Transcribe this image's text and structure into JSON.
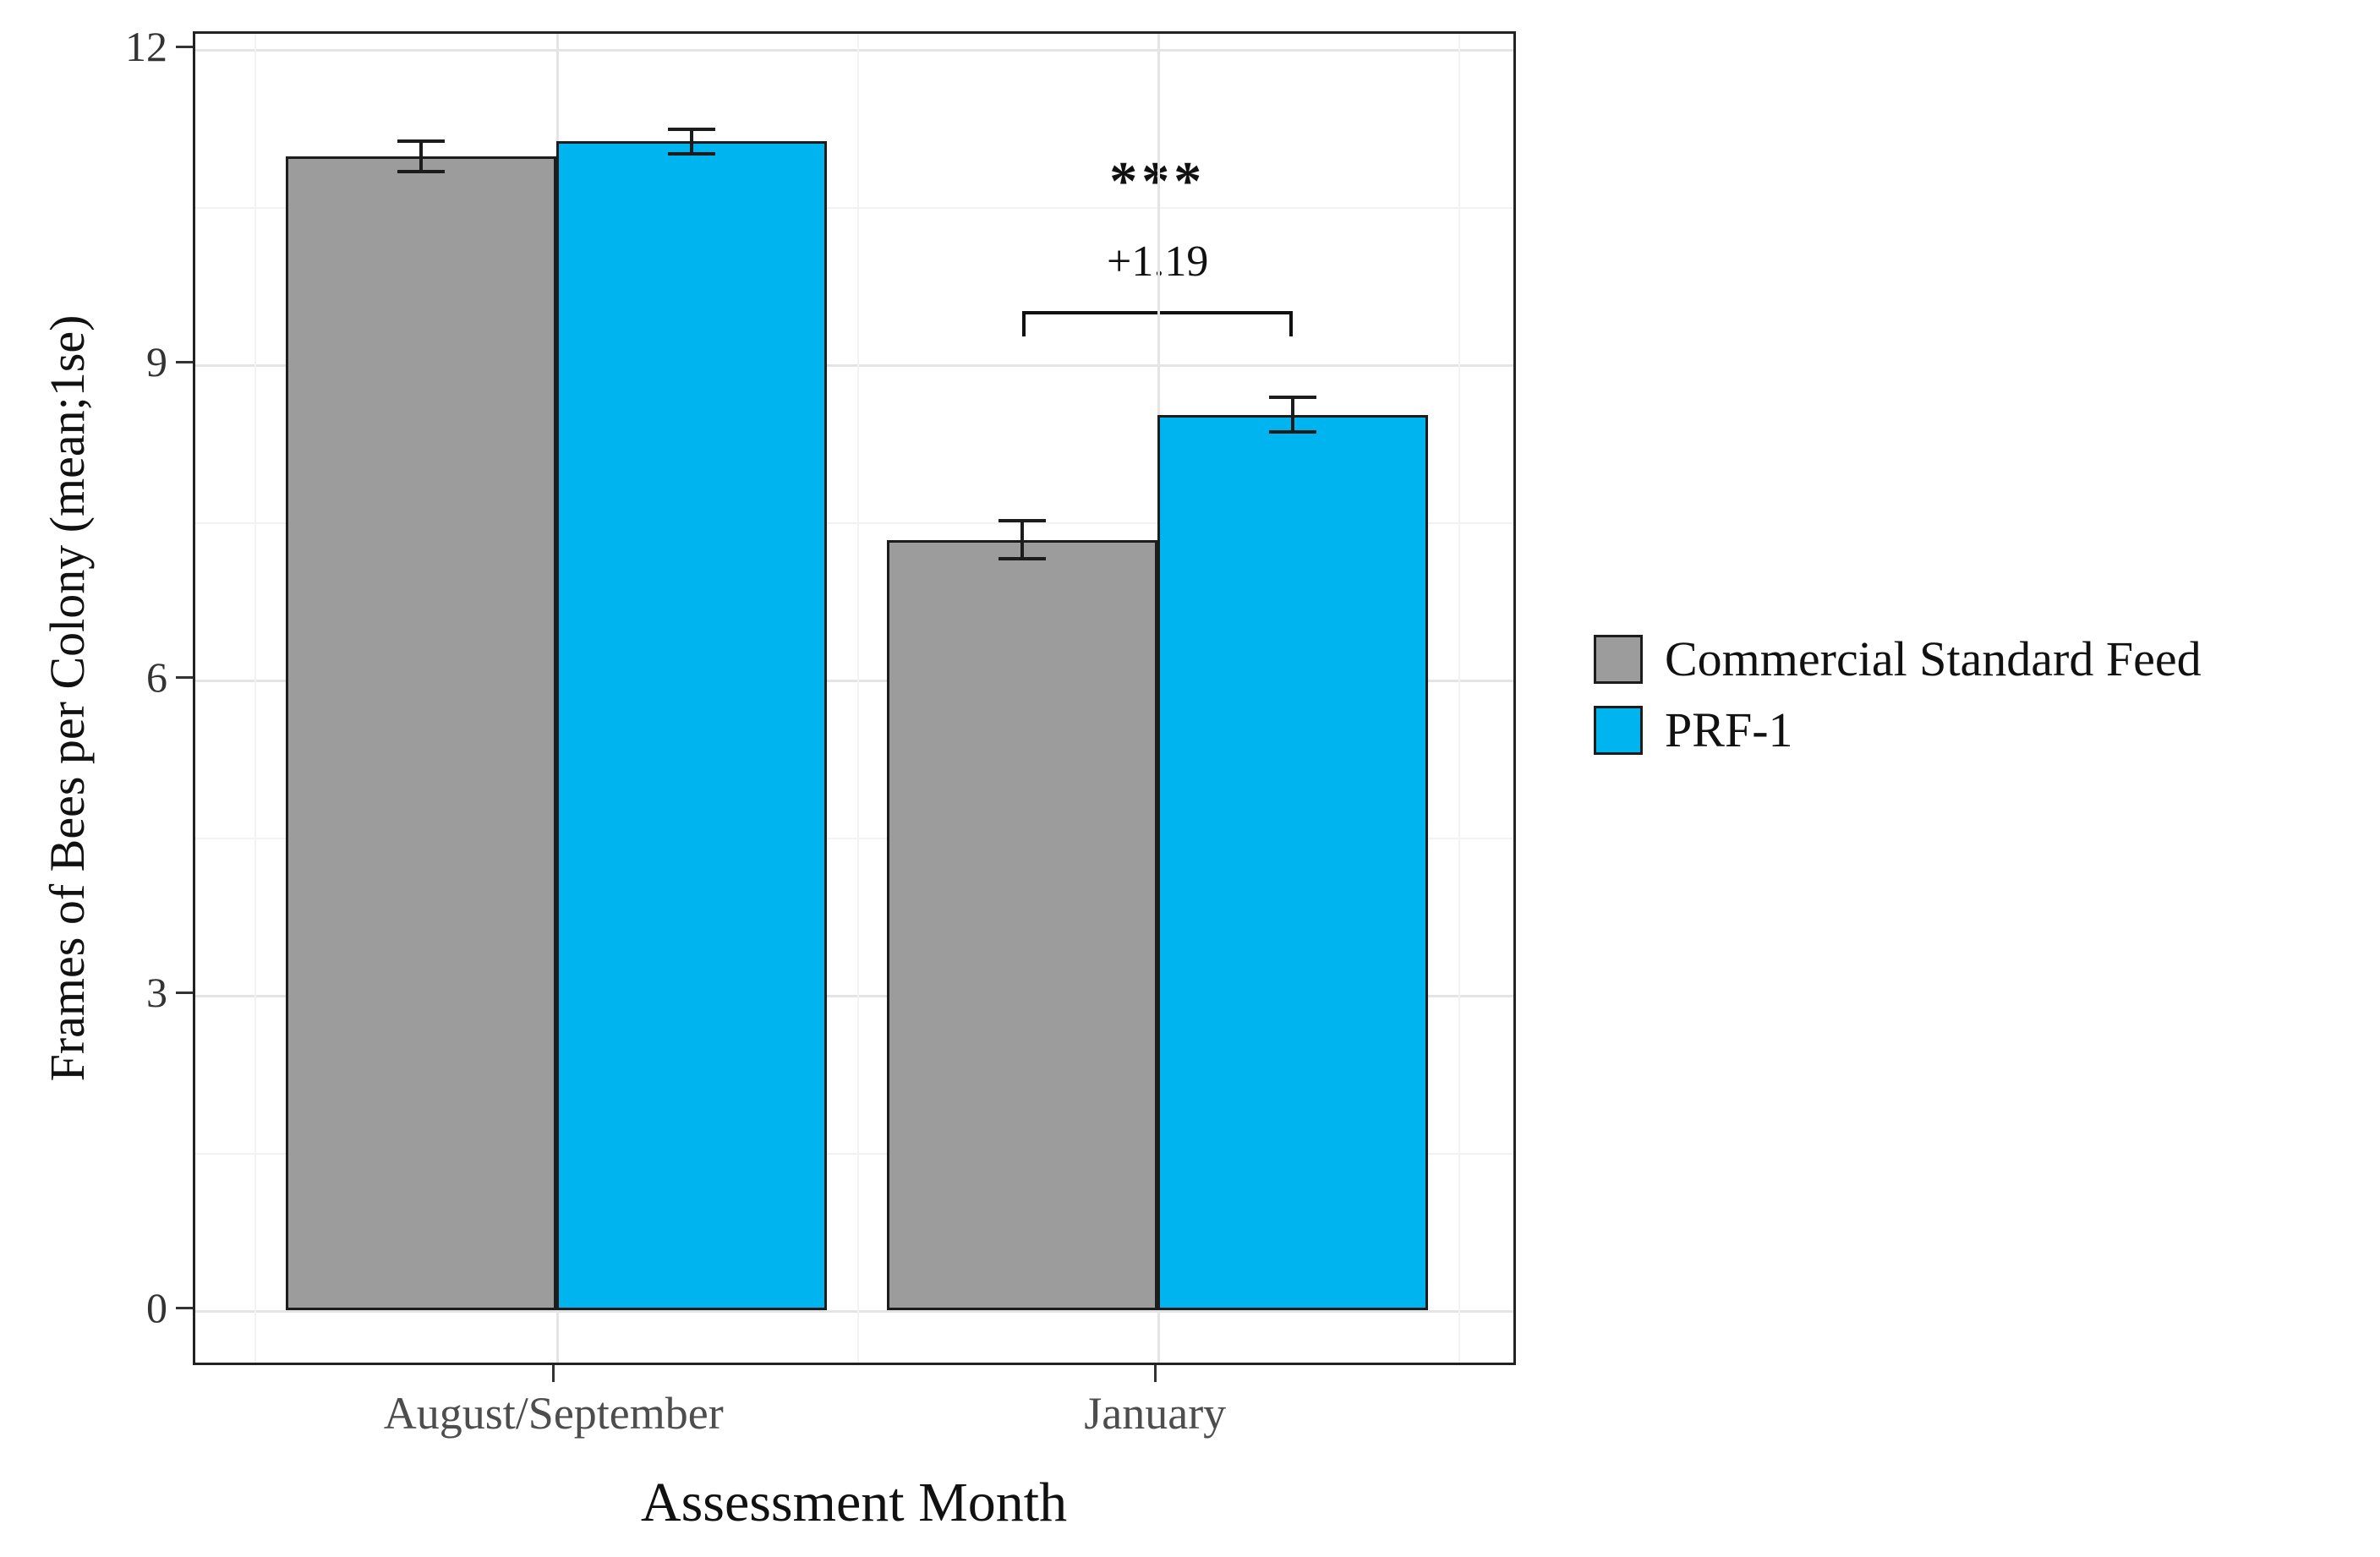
{
  "chart_data": {
    "type": "bar",
    "title": "",
    "xlabel": "Assessment Month",
    "ylabel": "Frames of Bees per Colony (mean;1se)",
    "categories": [
      "August/September",
      "January"
    ],
    "series": [
      {
        "name": "Commercial Standard Feed",
        "color": "#9c9c9c",
        "values": [
          10.98,
          7.33
        ],
        "se": [
          0.16,
          0.2
        ]
      },
      {
        "name": "PRF-1",
        "color": "#00b4ef",
        "values": [
          11.12,
          8.52
        ],
        "se": [
          0.13,
          0.18
        ]
      }
    ],
    "ylim": [
      0,
      12
    ],
    "yticks": [
      0,
      3,
      6,
      9,
      12
    ],
    "grid": {
      "horizontal": "major and minor",
      "vertical": "faint at category positions"
    },
    "legend_position": "right",
    "bar_outline_color": "#1c1c1c",
    "annotation": {
      "target_category": "January",
      "significance": "***",
      "difference_label": "+1.19"
    }
  }
}
